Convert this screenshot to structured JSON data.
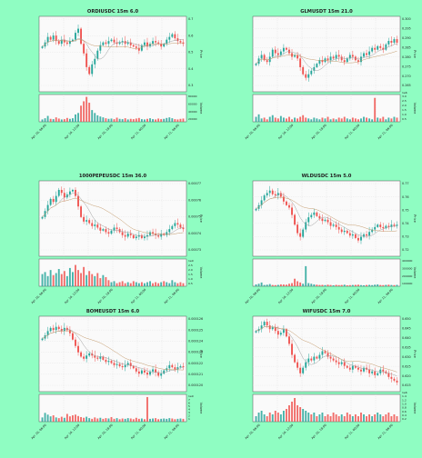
{
  "colors": {
    "background": "#8ffdc2",
    "up": "#26a69a",
    "down": "#ef5350",
    "ma_fast": "#9e9e9e",
    "ma_slow": "#c49a6c"
  },
  "chart_data": [
    {
      "type": "candlestick",
      "title": "ORDIUSDC 15m 6.0",
      "ylabel": "Price",
      "volume_label": "Volume",
      "y_ticks": [
        "0.7",
        "0.6",
        "0.5",
        "0.4",
        "0.3"
      ],
      "volume_ticks": [
        "80000",
        "60000",
        "40000",
        "20000"
      ],
      "x_ticks": [
        "Apr 10, 06:00",
        "Apr 10, 12:00",
        "Apr 10, 18:00",
        "Apr 11, 00:00",
        "Apr 11, 06:00"
      ],
      "ylim": [
        0.2,
        0.75
      ],
      "volume_max": 90000,
      "closes": [
        0.53,
        0.56,
        0.6,
        0.58,
        0.61,
        0.57,
        0.55,
        0.58,
        0.56,
        0.55,
        0.57,
        0.58,
        0.63,
        0.66,
        0.55,
        0.48,
        0.38,
        0.33,
        0.4,
        0.44,
        0.5,
        0.54,
        0.56,
        0.55,
        0.57,
        0.58,
        0.56,
        0.55,
        0.56,
        0.57,
        0.55,
        0.56,
        0.54,
        0.53,
        0.52,
        0.5,
        0.54,
        0.56,
        0.53,
        0.55,
        0.57,
        0.56,
        0.55,
        0.53,
        0.55,
        0.58,
        0.6,
        0.62,
        0.59,
        0.57,
        0.56,
        0.55
      ],
      "volumes": [
        8000,
        12000,
        20000,
        10000,
        9000,
        15000,
        11000,
        8000,
        9000,
        13000,
        10000,
        12000,
        25000,
        30000,
        55000,
        70000,
        85000,
        65000,
        40000,
        30000,
        22000,
        18000,
        15000,
        12000,
        10000,
        11000,
        9000,
        14000,
        10000,
        9000,
        12000,
        8000,
        10000,
        9000,
        11000,
        13000,
        9000,
        8000,
        10000,
        12000,
        9000,
        8000,
        11000,
        9000,
        10000,
        13000,
        15000,
        12000,
        9000,
        8000,
        10000,
        11000
      ]
    },
    {
      "type": "candlestick",
      "title": "GLMUSDT 15m 21.0",
      "ylabel": "Price",
      "volume_label": "Volume",
      "y_ticks": [
        "0.300",
        "0.295",
        "0.290",
        "0.285",
        "0.280",
        "0.275",
        "0.270",
        "0.265"
      ],
      "volume_ticks": [
        "3.0",
        "2.5",
        "2.0",
        "1.5",
        "1.0",
        "0.5"
      ],
      "volume_multiplier": "1e6",
      "x_ticks": [
        "Apr 10, 06:00",
        "Apr 10, 12:00",
        "Apr 10, 18:00",
        "Apr 11, 00:00",
        "Apr 11, 06:00"
      ],
      "ylim": [
        0.262,
        0.305
      ],
      "volume_max": 3.2,
      "closes": [
        0.278,
        0.281,
        0.283,
        0.28,
        0.279,
        0.282,
        0.286,
        0.284,
        0.283,
        0.285,
        0.287,
        0.286,
        0.284,
        0.282,
        0.283,
        0.281,
        0.276,
        0.272,
        0.27,
        0.272,
        0.274,
        0.276,
        0.278,
        0.28,
        0.279,
        0.281,
        0.28,
        0.282,
        0.281,
        0.283,
        0.282,
        0.28,
        0.279,
        0.281,
        0.283,
        0.282,
        0.28,
        0.279,
        0.282,
        0.284,
        0.283,
        0.285,
        0.287,
        0.286,
        0.288,
        0.287,
        0.286,
        0.289,
        0.291,
        0.29,
        0.292,
        0.29
      ],
      "volumes": [
        0.6,
        0.9,
        0.4,
        0.5,
        0.3,
        0.6,
        0.8,
        0.5,
        0.4,
        0.7,
        0.5,
        0.4,
        0.6,
        0.3,
        0.5,
        0.4,
        0.6,
        0.8,
        0.5,
        0.4,
        0.3,
        0.5,
        0.4,
        0.3,
        0.5,
        0.4,
        0.6,
        0.3,
        0.4,
        0.3,
        0.5,
        0.4,
        0.6,
        0.4,
        0.3,
        0.5,
        0.4,
        0.3,
        0.4,
        0.6,
        0.5,
        0.4,
        0.3,
        2.9,
        0.5,
        0.4,
        0.6,
        0.3,
        0.5,
        0.4,
        0.6,
        0.5
      ]
    },
    {
      "type": "candlestick",
      "title": "1000PEPEUSDC 15m 36.0",
      "ylabel": "Price",
      "volume_label": "Volume",
      "y_ticks": [
        "0.00077",
        "0.00076",
        "0.00075",
        "0.00074",
        "0.00073"
      ],
      "volume_ticks": [
        "1e9",
        "2.5",
        "2.0",
        "1.5",
        "1.0",
        "0.5"
      ],
      "x_ticks": [
        "Apr 10, 06:00",
        "Apr 10, 12:00",
        "Apr 10, 18:00",
        "Apr 11, 00:00",
        "Apr 11, 06:00"
      ],
      "ylim": [
        0.000722,
        0.000772
      ],
      "volume_max": 2.6,
      "closes": [
        0.000748,
        0.000752,
        0.000756,
        0.00076,
        0.000758,
        0.000762,
        0.000766,
        0.000764,
        0.000761,
        0.000763,
        0.000765,
        0.000766,
        0.000762,
        0.000755,
        0.000748,
        0.000745,
        0.000746,
        0.000744,
        0.000742,
        0.000743,
        0.000741,
        0.000739,
        0.00074,
        0.000738,
        0.000737,
        0.000739,
        0.000741,
        0.00074,
        0.000738,
        0.000736,
        0.000735,
        0.000737,
        0.000736,
        0.000734,
        0.000735,
        0.000736,
        0.000734,
        0.000735,
        0.000736,
        0.000738,
        0.000737,
        0.000736,
        0.000735,
        0.000737,
        0.000736,
        0.000738,
        0.00074,
        0.000742,
        0.000744,
        0.000743,
        0.000741,
        0.00074
      ],
      "volumes": [
        1.2,
        1.4,
        1.0,
        1.6,
        1.1,
        1.3,
        1.7,
        1.2,
        1.5,
        1.0,
        1.8,
        1.4,
        2.1,
        1.6,
        1.3,
        1.9,
        1.1,
        1.5,
        1.2,
        1.0,
        1.3,
        0.8,
        1.1,
        0.9,
        0.6,
        0.4,
        0.5,
        0.3,
        0.4,
        0.5,
        0.3,
        0.4,
        0.3,
        0.5,
        0.4,
        0.3,
        0.4,
        0.3,
        0.4,
        0.5,
        0.3,
        0.4,
        0.3,
        0.4,
        0.5,
        0.4,
        0.3,
        0.6,
        0.4,
        0.3,
        0.4,
        0.3
      ]
    },
    {
      "type": "candlestick",
      "title": "WLDUSDC 15m 5.0",
      "ylabel": "Price",
      "volume_label": "Volume",
      "y_ticks": [
        "0.77",
        "0.76",
        "0.75",
        "0.74",
        "0.73",
        "0.72"
      ],
      "volume_ticks": [
        "400000",
        "300000",
        "200000",
        "100000"
      ],
      "x_ticks": [
        "Apr 10, 06:00",
        "Apr 10, 12:00",
        "Apr 10, 18:00",
        "Apr 11, 00:00",
        "Apr 11, 06:00"
      ],
      "ylim": [
        0.716,
        0.778
      ],
      "volume_max": 420000,
      "closes": [
        0.755,
        0.758,
        0.762,
        0.766,
        0.768,
        0.77,
        0.767,
        0.766,
        0.768,
        0.765,
        0.761,
        0.758,
        0.756,
        0.75,
        0.742,
        0.735,
        0.732,
        0.738,
        0.744,
        0.748,
        0.75,
        0.752,
        0.749,
        0.747,
        0.745,
        0.746,
        0.744,
        0.741,
        0.742,
        0.74,
        0.738,
        0.736,
        0.737,
        0.735,
        0.733,
        0.734,
        0.731,
        0.729,
        0.732,
        0.734,
        0.733,
        0.736,
        0.738,
        0.74,
        0.742,
        0.74,
        0.739,
        0.741,
        0.74,
        0.742,
        0.741,
        0.742
      ],
      "volumes": [
        30000,
        40000,
        60000,
        20000,
        25000,
        35000,
        20000,
        18000,
        22000,
        30000,
        28000,
        25000,
        40000,
        50000,
        120000,
        80000,
        60000,
        40000,
        320000,
        50000,
        40000,
        30000,
        25000,
        20000,
        22000,
        18000,
        25000,
        20000,
        15000,
        22000,
        18000,
        20000,
        25000,
        15000,
        18000,
        20000,
        22000,
        25000,
        18000,
        15000,
        20000,
        22000,
        18000,
        25000,
        30000,
        20000,
        18000,
        22000,
        25000,
        20000,
        18000,
        22000
      ]
    },
    {
      "type": "candlestick",
      "title": "BOMEUSDT 15m 6.0",
      "ylabel": "Price",
      "volume_label": "Volume",
      "y_ticks": [
        "0.000126",
        "0.000125",
        "0.000124",
        "0.000123",
        "0.000122",
        "0.000121",
        "0.000120"
      ],
      "volume_ticks": [
        "1e9",
        "7",
        "6",
        "5",
        "4",
        "3",
        "2",
        "1"
      ],
      "x_ticks": [
        "Apr 10, 06:00",
        "Apr 10, 12:00",
        "Apr 10, 18:00",
        "Apr 11, 00:00",
        "Apr 11, 06:00"
      ],
      "ylim": [
        0.0001195,
        0.0001266
      ],
      "volume_max": 7.5,
      "closes": [
        0.0001245,
        0.0001248,
        0.0001252,
        0.0001255,
        0.0001253,
        0.0001256,
        0.0001254,
        0.0001252,
        0.0001255,
        0.0001253,
        0.000125,
        0.0001244,
        0.0001238,
        0.0001232,
        0.0001228,
        0.0001226,
        0.0001229,
        0.0001231,
        0.0001229,
        0.0001227,
        0.0001226,
        0.0001228,
        0.0001225,
        0.0001223,
        0.0001224,
        0.0001222,
        0.000122,
        0.0001221,
        0.0001219,
        0.0001218,
        0.000122,
        0.0001222,
        0.0001219,
        0.0001217,
        0.0001214,
        0.0001212,
        0.0001215,
        0.0001213,
        0.0001211,
        0.0001214,
        0.0001216,
        0.0001213,
        0.000121,
        0.0001212,
        0.0001215,
        0.0001217,
        0.000122,
        0.0001218,
        0.0001216,
        0.0001218,
        0.0001219,
        0.0001218
      ],
      "volumes": [
        1.2,
        2.5,
        2.0,
        1.5,
        1.8,
        1.2,
        1.0,
        1.4,
        1.1,
        2.2,
        1.5,
        1.8,
        2.0,
        1.6,
        1.3,
        1.1,
        1.4,
        1.0,
        0.8,
        1.2,
        0.9,
        1.1,
        0.8,
        1.0,
        0.9,
        1.3,
        0.8,
        1.0,
        0.7,
        0.9,
        0.8,
        1.0,
        0.9,
        0.7,
        1.1,
        0.8,
        0.9,
        0.7,
        7.0,
        0.8,
        0.9,
        1.0,
        0.7,
        0.8,
        0.9,
        0.8,
        1.0,
        0.9,
        0.7,
        0.8,
        0.9,
        0.8
      ]
    },
    {
      "type": "candlestick",
      "title": "WIFUSDC 15m 7.0",
      "ylabel": "Price",
      "volume_label": "Volume",
      "y_ticks": [
        "0.650",
        "0.645",
        "0.640",
        "0.635",
        "0.630",
        "0.625",
        "0.620",
        "0.615"
      ],
      "volume_ticks": [
        "1.4",
        "1.2",
        "1.0",
        "0.8",
        "0.6",
        "0.4",
        "0.2"
      ],
      "volume_multiplier": "1e6",
      "x_ticks": [
        "Apr 10, 06:00",
        "Apr 10, 12:00",
        "Apr 10, 18:00",
        "Apr 11, 00:00",
        "Apr 11, 06:00"
      ],
      "ylim": [
        0.612,
        0.653
      ],
      "volume_max": 1.45,
      "closes": [
        0.645,
        0.646,
        0.648,
        0.65,
        0.648,
        0.646,
        0.647,
        0.645,
        0.643,
        0.644,
        0.646,
        0.642,
        0.638,
        0.632,
        0.628,
        0.625,
        0.622,
        0.625,
        0.628,
        0.63,
        0.629,
        0.631,
        0.63,
        0.632,
        0.634,
        0.633,
        0.631,
        0.63,
        0.629,
        0.628,
        0.627,
        0.628,
        0.626,
        0.625,
        0.624,
        0.626,
        0.625,
        0.624,
        0.623,
        0.625,
        0.624,
        0.622,
        0.623,
        0.621,
        0.622,
        0.624,
        0.623,
        0.622,
        0.62,
        0.619,
        0.618,
        0.617
      ],
      "volumes": [
        0.3,
        0.5,
        0.6,
        0.4,
        0.3,
        0.5,
        0.4,
        0.6,
        0.5,
        0.4,
        0.6,
        0.7,
        0.9,
        1.1,
        1.3,
        0.9,
        0.8,
        0.7,
        0.6,
        0.5,
        0.4,
        0.5,
        0.3,
        0.4,
        0.5,
        0.3,
        0.4,
        0.3,
        0.5,
        0.4,
        0.3,
        0.4,
        0.3,
        0.5,
        0.4,
        0.3,
        0.4,
        0.3,
        0.5,
        0.4,
        0.3,
        0.4,
        0.3,
        0.4,
        0.5,
        0.4,
        0.3,
        0.4,
        0.5,
        0.3,
        0.4,
        0.3
      ]
    }
  ]
}
